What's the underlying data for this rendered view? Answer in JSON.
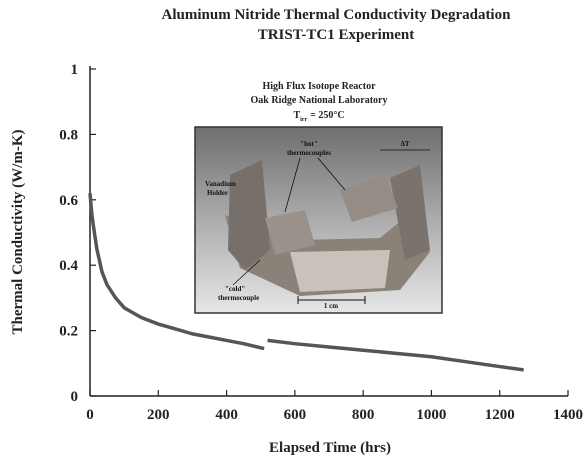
{
  "chart_data": {
    "type": "line",
    "title": "Aluminum Nitride Thermal Conductivity Degradation",
    "subtitle": "TRIST-TC1 Experiment",
    "x_label": "Elapsed Time (hrs)",
    "y_label": "Thermal Conductivity (W/m-K)",
    "x": [
      0,
      5,
      10,
      20,
      35,
      50,
      75,
      100,
      150,
      200,
      250,
      300,
      350,
      400,
      450,
      510,
      515,
      520,
      600,
      700,
      800,
      900,
      1000,
      1100,
      1200,
      1270
    ],
    "values": [
      0.62,
      0.56,
      0.52,
      0.45,
      0.38,
      0.34,
      0.3,
      0.27,
      0.24,
      0.22,
      0.205,
      0.19,
      0.18,
      0.17,
      0.16,
      0.145,
      null,
      0.17,
      0.16,
      0.15,
      0.14,
      0.13,
      0.12,
      0.105,
      0.09,
      0.08
    ],
    "color": "#555555",
    "xlim": [
      0,
      1400
    ],
    "xticks": [
      0,
      200,
      400,
      600,
      800,
      1000,
      1200,
      1400
    ],
    "ylim": [
      0,
      1
    ],
    "yticks": [
      0,
      0.2,
      0.4,
      0.6,
      0.8,
      1
    ],
    "annotations": {
      "line1": "High Flux Isotope Reactor",
      "line2": "Oak Ridge National Laboratory",
      "t_symbol": "T",
      "t_sub": "irr",
      "t_rest": "= 250°C"
    },
    "photo_labels": {
      "holder": [
        "Vanadium",
        "Holder"
      ],
      "hot": [
        "\"hot\"",
        "thermocouples"
      ],
      "delta": "ΔT",
      "cold": [
        "\"cold\"",
        "thermocouple"
      ],
      "scale": "1 cm"
    }
  }
}
